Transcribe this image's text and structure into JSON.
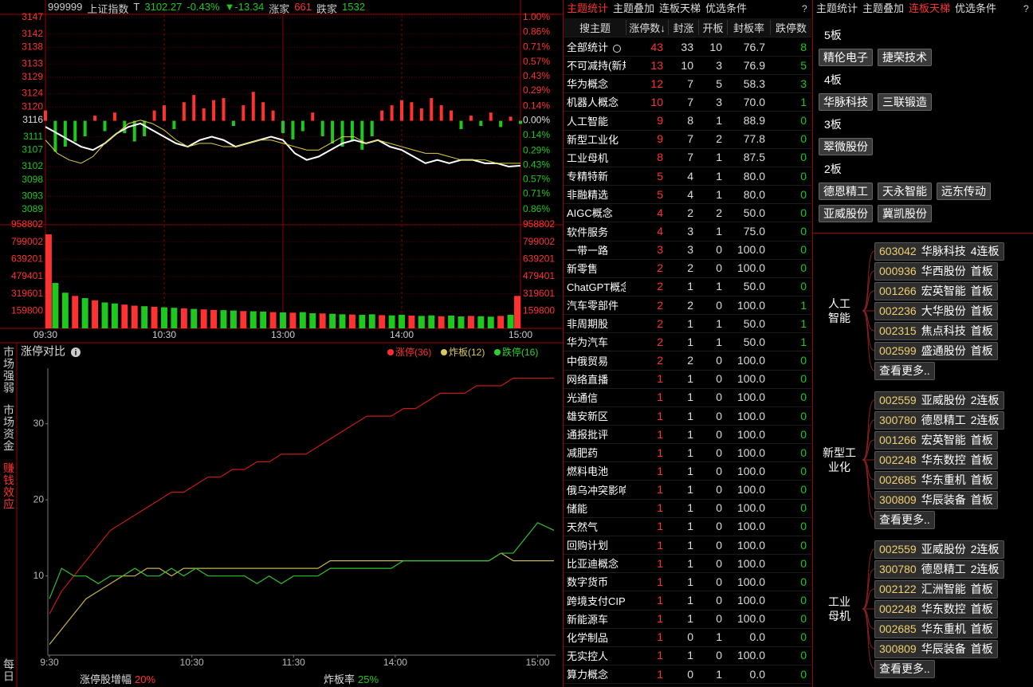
{
  "colors": {
    "up": "#ff3232",
    "down": "#1ec81e",
    "flat": "#e0e0e0"
  },
  "quote": {
    "code": "999999",
    "name": "上证指数",
    "flag": "T",
    "price": "3102.27",
    "pct": "-0.43%",
    "change": "▼-13.34",
    "up_label": "涨家",
    "up": "661",
    "down_label": "跌家",
    "down": "1532"
  },
  "chart_data": [
    {
      "type": "line",
      "x": [
        0,
        6,
        12,
        18,
        24,
        30,
        36,
        42,
        48,
        54,
        60,
        66,
        72,
        78,
        84,
        90,
        96,
        102,
        108,
        114,
        120,
        126,
        132,
        138,
        144,
        150,
        156,
        162,
        168,
        174,
        180,
        186,
        192,
        198,
        204,
        210,
        216,
        222,
        228,
        234,
        240
      ],
      "xlim": [
        0,
        240
      ],
      "ylim": [
        3089,
        3147
      ],
      "yticks": [
        3147,
        3142,
        3138,
        3133,
        3129,
        3124,
        3120,
        3116,
        3111,
        3107,
        3102,
        3098,
        3093,
        3089
      ],
      "y2lim": [
        -0.86,
        1.0
      ],
      "y2ticks": [
        {
          "value": 1.0,
          "label": "1.00%"
        },
        {
          "value": 0.86,
          "label": "0.86%"
        },
        {
          "value": 0.71,
          "label": "0.71%"
        },
        {
          "value": 0.57,
          "label": "0.57%"
        },
        {
          "value": 0.43,
          "label": "0.43%"
        },
        {
          "value": 0.29,
          "label": "0.29%"
        },
        {
          "value": 0.14,
          "label": "0.14%"
        },
        {
          "value": 0,
          "label": "0.00%"
        },
        {
          "value": -0.14,
          "label": "0.14%"
        },
        {
          "value": -0.29,
          "label": "0.29%"
        },
        {
          "value": -0.43,
          "label": "0.43%"
        },
        {
          "value": -0.57,
          "label": "0.57%"
        },
        {
          "value": -0.71,
          "label": "0.71%"
        },
        {
          "value": -0.86,
          "label": "0.86%"
        }
      ],
      "series": [
        {
          "color": "#ffffff",
          "values": [
            3114,
            3112,
            3110,
            3108,
            3107,
            3109,
            3112,
            3114,
            3115,
            3113,
            3111,
            3109,
            3108,
            3110,
            3111,
            3110,
            3108,
            3109,
            3110,
            3111,
            3110,
            3106,
            3104,
            3105,
            3107,
            3109,
            3110,
            3109,
            3110,
            3108,
            3107,
            3105,
            3103,
            3104,
            3103,
            3104,
            3104,
            3103,
            3103,
            3102,
            3102.27
          ]
        },
        {
          "color": "#e0d040",
          "values": [
            3110,
            3106,
            3104,
            3103,
            3105,
            3109,
            3112,
            3115,
            3116,
            3115,
            3113,
            3110,
            3108,
            3109,
            3109,
            3108,
            3108,
            3109,
            3110,
            3110,
            3109,
            3108,
            3107,
            3107,
            3109,
            3111,
            3111,
            3109,
            3110,
            3109,
            3108,
            3107,
            3106,
            3106,
            3105,
            3104,
            3104,
            3104,
            3103,
            3103,
            3103
          ]
        }
      ],
      "breadth": {
        "axis": "y2",
        "x": [
          0,
          5,
          10,
          15,
          20,
          25,
          30,
          35,
          40,
          45,
          50,
          55,
          60,
          65,
          70,
          75,
          80,
          85,
          90,
          95,
          100,
          105,
          110,
          115,
          120,
          125,
          130,
          135,
          140,
          145,
          150,
          155,
          160,
          165,
          170,
          175,
          180,
          185,
          190,
          195,
          200,
          205,
          210,
          215,
          220,
          225,
          230,
          235,
          240
        ],
        "values": [
          0.1,
          -0.3,
          -0.25,
          -0.2,
          -0.15,
          0.05,
          -0.1,
          0.08,
          -0.12,
          -0.2,
          -0.15,
          0.1,
          0.15,
          -0.08,
          0.18,
          0.25,
          0.12,
          0.2,
          0.22,
          -0.05,
          0.15,
          0.28,
          0.18,
          0.1,
          -0.12,
          -0.18,
          -0.1,
          0.08,
          -0.15,
          -0.22,
          -0.25,
          -0.2,
          -0.28,
          -0.15,
          0.1,
          0.15,
          0.2,
          0.18,
          0.12,
          0.22,
          0.15,
          0.1,
          -0.08,
          0.05,
          -0.05,
          0.08,
          -0.06,
          0.04,
          -0.03
        ]
      }
    },
    {
      "type": "bar",
      "x": [
        0,
        5,
        10,
        15,
        20,
        25,
        30,
        35,
        40,
        45,
        50,
        55,
        60,
        65,
        70,
        75,
        80,
        85,
        90,
        95,
        100,
        105,
        110,
        115,
        120,
        125,
        130,
        135,
        140,
        145,
        150,
        155,
        160,
        165,
        170,
        175,
        180,
        185,
        190,
        195,
        200,
        205,
        210,
        215,
        220,
        225,
        230,
        235,
        240
      ],
      "xlim": [
        0,
        240
      ],
      "xticks": [
        {
          "value": 0,
          "label": "09:30"
        },
        {
          "value": 60,
          "label": "10:30"
        },
        {
          "value": 120,
          "label": "13:00"
        },
        {
          "value": 180,
          "label": "14:00"
        },
        {
          "value": 240,
          "label": "15:00"
        }
      ],
      "ylim": [
        0,
        958802
      ],
      "yticks": [
        958802,
        799002,
        639201,
        479401,
        319601,
        159800
      ],
      "values": [
        870000,
        420000,
        330000,
        300000,
        280000,
        260000,
        240000,
        230000,
        220000,
        210000,
        205000,
        200000,
        195000,
        190000,
        185000,
        180000,
        175000,
        170000,
        168000,
        165000,
        160000,
        158000,
        155000,
        150000,
        148000,
        145000,
        150000,
        140000,
        138000,
        135000,
        130000,
        128000,
        125000,
        130000,
        122000,
        120000,
        125000,
        118000,
        115000,
        120000,
        112000,
        118000,
        110000,
        115000,
        112000,
        108000,
        115000,
        125000,
        300000
      ],
      "directions": [
        "up",
        "down",
        "down",
        "up",
        "down",
        "up",
        "down",
        "down",
        "up",
        "up",
        "down",
        "up",
        "down",
        "down",
        "up",
        "down",
        "up",
        "up",
        "down",
        "down",
        "up",
        "down",
        "down",
        "up",
        "down",
        "up",
        "down",
        "down",
        "up",
        "down",
        "down",
        "up",
        "down",
        "down",
        "up",
        "down",
        "down",
        "up",
        "down",
        "down",
        "up",
        "down",
        "down",
        "up",
        "down",
        "down",
        "up",
        "down",
        "up"
      ]
    },
    {
      "type": "line",
      "title": "涨停对比",
      "x": [
        0,
        6,
        12,
        18,
        24,
        30,
        36,
        42,
        48,
        54,
        60,
        66,
        72,
        78,
        84,
        90,
        96,
        102,
        108,
        114,
        120,
        126,
        132,
        138,
        144,
        150,
        156,
        162,
        168,
        174,
        180,
        186,
        192,
        198,
        204,
        210,
        216,
        222,
        228,
        234,
        240,
        248
      ],
      "xlim": [
        0,
        248
      ],
      "xticks": [
        {
          "value": 0,
          "label": "9:30"
        },
        {
          "value": 70,
          "label": "10:30"
        },
        {
          "value": 120,
          "label": "11:30"
        },
        {
          "value": 170,
          "label": "14:00"
        },
        {
          "value": 240,
          "label": "15:00"
        }
      ],
      "ylim": [
        -0.4,
        37.3
      ],
      "yticks": [
        10,
        20,
        30
      ],
      "series": [
        {
          "name": "涨停(36)",
          "color": "#c81818",
          "legend_color": "#ff3030",
          "values": [
            5,
            8,
            10,
            12,
            14,
            16,
            17,
            18,
            19,
            20,
            21,
            21,
            22,
            23,
            23,
            24,
            24,
            25,
            25,
            26,
            26,
            26,
            27,
            28,
            29,
            30,
            31,
            31,
            31,
            32,
            32,
            33,
            34,
            34,
            34,
            35,
            35,
            35,
            36,
            36,
            36,
            36
          ]
        },
        {
          "name": "炸板(12)",
          "color": "#c8b450",
          "legend_color": "#d8c860",
          "values": [
            1,
            3,
            5,
            7,
            8,
            9,
            10,
            10,
            11,
            11,
            10,
            11,
            11,
            11,
            11,
            11,
            11,
            11,
            11,
            11,
            11,
            11,
            11,
            12,
            12,
            12,
            12,
            12,
            12,
            12,
            12,
            12,
            12,
            12,
            12,
            12,
            12,
            13,
            12,
            12,
            12,
            12
          ]
        },
        {
          "name": "跌停(16)",
          "color": "#30c030",
          "legend_color": "#30d030",
          "values": [
            7,
            11,
            10,
            10,
            9,
            10,
            10,
            11,
            10,
            10,
            11,
            10,
            11,
            10,
            10,
            10,
            10,
            9,
            10,
            9,
            10,
            10,
            10,
            11,
            11,
            11,
            11,
            11,
            11,
            12,
            12,
            12,
            12,
            12,
            12,
            12,
            12,
            13,
            13,
            15,
            17,
            16
          ]
        }
      ]
    }
  ],
  "limit_stats": [
    {
      "label": "涨停股增幅",
      "value": "20%"
    },
    {
      "label": "炸板率",
      "value": "25%"
    }
  ],
  "side_tabs": {
    "items": [
      "市场强弱",
      "市场资金",
      "赚钱效应",
      "每日"
    ],
    "active": 2
  },
  "theme_table": {
    "tabs": [
      "主题统计",
      "主题叠加",
      "连板天梯",
      "优选条件"
    ],
    "active": 0,
    "help": "?",
    "columns": [
      "搜主题",
      "涨停数↓",
      "封涨",
      "开板",
      "封板率",
      "跌停数"
    ],
    "rows": [
      [
        "全部统计",
        "43",
        "33",
        "10",
        "76.7",
        "8"
      ],
      [
        "不可减持(新规)",
        "13",
        "10",
        "3",
        "76.9",
        "5"
      ],
      [
        "华为概念",
        "12",
        "7",
        "5",
        "58.3",
        "3"
      ],
      [
        "机器人概念",
        "10",
        "7",
        "3",
        "70.0",
        "1"
      ],
      [
        "人工智能",
        "9",
        "8",
        "1",
        "88.9",
        "0"
      ],
      [
        "新型工业化",
        "9",
        "7",
        "2",
        "77.8",
        "0"
      ],
      [
        "工业母机",
        "8",
        "7",
        "1",
        "87.5",
        "0"
      ],
      [
        "专精特新",
        "5",
        "4",
        "1",
        "80.0",
        "0"
      ],
      [
        "非融精选",
        "5",
        "4",
        "1",
        "80.0",
        "0"
      ],
      [
        "AIGC概念",
        "4",
        "2",
        "2",
        "50.0",
        "0"
      ],
      [
        "软件服务",
        "4",
        "3",
        "1",
        "75.0",
        "0"
      ],
      [
        "一带一路",
        "3",
        "3",
        "0",
        "100.0",
        "0"
      ],
      [
        "新零售",
        "2",
        "2",
        "0",
        "100.0",
        "0"
      ],
      [
        "ChatGPT概念",
        "2",
        "1",
        "1",
        "50.0",
        "0"
      ],
      [
        "汽车零部件",
        "2",
        "2",
        "0",
        "100.0",
        "1"
      ],
      [
        "非周期股",
        "2",
        "1",
        "1",
        "50.0",
        "1"
      ],
      [
        "华为汽车",
        "2",
        "1",
        "1",
        "50.0",
        "1"
      ],
      [
        "中俄贸易",
        "2",
        "2",
        "0",
        "100.0",
        "0"
      ],
      [
        "网络直播",
        "1",
        "1",
        "0",
        "100.0",
        "0"
      ],
      [
        "光通信",
        "1",
        "1",
        "0",
        "100.0",
        "0"
      ],
      [
        "雄安新区",
        "1",
        "1",
        "0",
        "100.0",
        "0"
      ],
      [
        "通报批评",
        "1",
        "1",
        "0",
        "100.0",
        "0"
      ],
      [
        "减肥药",
        "1",
        "1",
        "0",
        "100.0",
        "0"
      ],
      [
        "燃料电池",
        "1",
        "1",
        "0",
        "100.0",
        "0"
      ],
      [
        "俄乌冲突影响",
        "1",
        "1",
        "0",
        "100.0",
        "0"
      ],
      [
        "储能",
        "1",
        "1",
        "0",
        "100.0",
        "0"
      ],
      [
        "天然气",
        "1",
        "1",
        "0",
        "100.0",
        "0"
      ],
      [
        "回购计划",
        "1",
        "1",
        "0",
        "100.0",
        "0"
      ],
      [
        "比亚迪概念",
        "1",
        "1",
        "0",
        "100.0",
        "0"
      ],
      [
        "数字货币",
        "1",
        "1",
        "0",
        "100.0",
        "0"
      ],
      [
        "跨境支付CIPS",
        "1",
        "1",
        "0",
        "100.0",
        "0"
      ],
      [
        "新能源车",
        "1",
        "1",
        "0",
        "100.0",
        "0"
      ],
      [
        "化学制品",
        "1",
        "0",
        "1",
        "0.0",
        "0"
      ],
      [
        "无实控人",
        "1",
        "1",
        "0",
        "100.0",
        "0"
      ],
      [
        "算力概念",
        "1",
        "0",
        "1",
        "0.0",
        "0"
      ]
    ]
  },
  "ladder": {
    "tabs": [
      "主题统计",
      "主题叠加",
      "连板天梯",
      "优选条件"
    ],
    "active": 2,
    "help": "?",
    "levels": [
      {
        "label": "5板",
        "stocks": [
          "精伦电子",
          "捷荣技术"
        ]
      },
      {
        "label": "4板",
        "stocks": [
          "华脉科技",
          "三联锻造"
        ]
      },
      {
        "label": "3板",
        "stocks": [
          "翠微股份"
        ]
      },
      {
        "label": "2板",
        "stocks": [
          "德恩精工",
          "天永智能",
          "远东传动",
          "亚威股份",
          "冀凯股份"
        ]
      }
    ]
  },
  "groups": [
    {
      "label_lines": [
        "人工",
        "智能"
      ],
      "more": "查看更多..",
      "items": [
        {
          "code": "603042",
          "name": "华脉科技",
          "status": "4连板"
        },
        {
          "code": "000936",
          "name": "华西股份",
          "status": "首板"
        },
        {
          "code": "001266",
          "name": "宏英智能",
          "status": "首板"
        },
        {
          "code": "002236",
          "name": "大华股份",
          "status": "首板"
        },
        {
          "code": "002315",
          "name": "焦点科技",
          "status": "首板"
        },
        {
          "code": "002599",
          "name": "盛通股份",
          "status": "首板"
        }
      ]
    },
    {
      "label_lines": [
        "新型工",
        "业化"
      ],
      "more": "查看更多..",
      "items": [
        {
          "code": "002559",
          "name": "亚威股份",
          "status": "2连板"
        },
        {
          "code": "300780",
          "name": "德恩精工",
          "status": "2连板"
        },
        {
          "code": "001266",
          "name": "宏英智能",
          "status": "首板"
        },
        {
          "code": "002248",
          "name": "华东数控",
          "status": "首板"
        },
        {
          "code": "002685",
          "name": "华东重机",
          "status": "首板"
        },
        {
          "code": "300809",
          "name": "华辰装备",
          "status": "首板"
        }
      ]
    },
    {
      "label_lines": [
        "工业",
        "母机"
      ],
      "more": "查看更多..",
      "items": [
        {
          "code": "002559",
          "name": "亚威股份",
          "status": "2连板"
        },
        {
          "code": "300780",
          "name": "德恩精工",
          "status": "2连板"
        },
        {
          "code": "002122",
          "name": "汇洲智能",
          "status": "首板"
        },
        {
          "code": "002248",
          "name": "华东数控",
          "status": "首板"
        },
        {
          "code": "002685",
          "name": "华东重机",
          "status": "首板"
        },
        {
          "code": "300809",
          "name": "华辰装备",
          "status": "首板"
        }
      ]
    }
  ]
}
